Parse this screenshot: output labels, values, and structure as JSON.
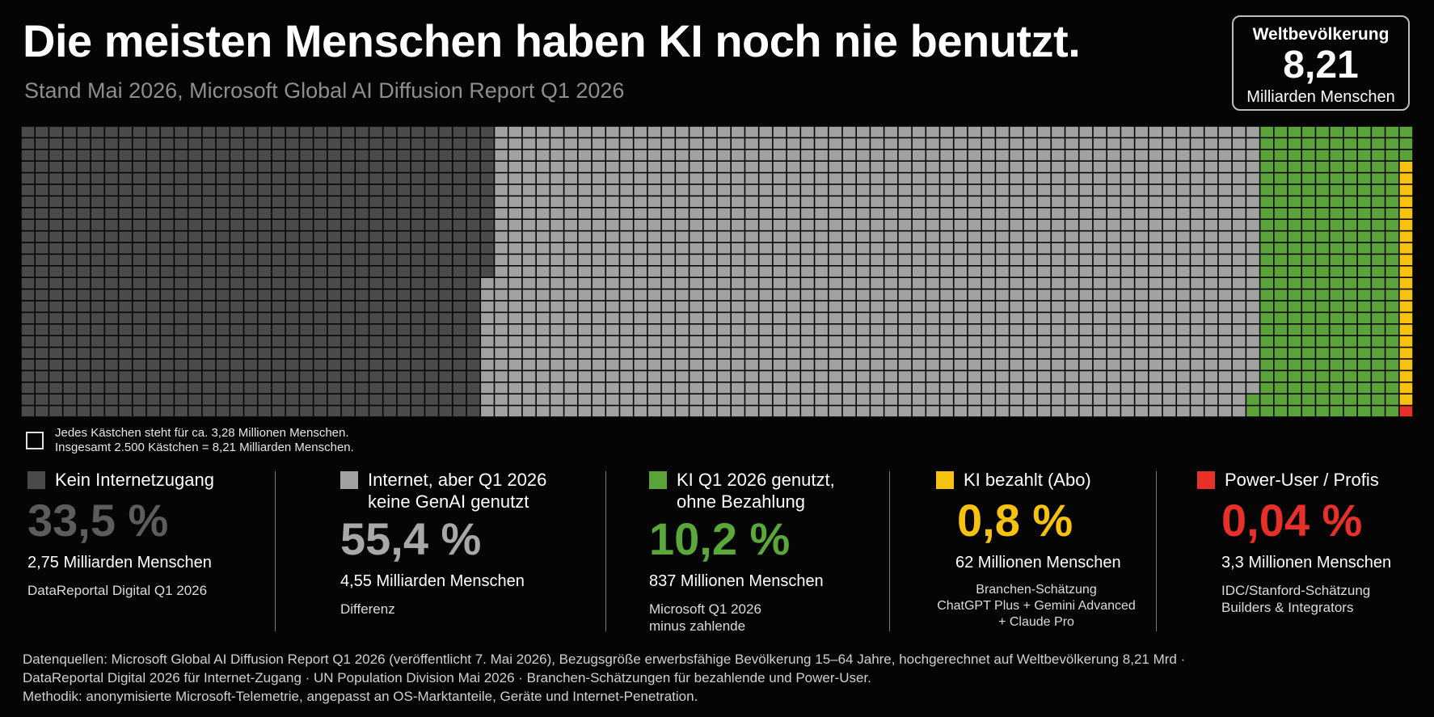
{
  "header": {
    "title": "Die meisten Menschen haben KI noch nie benutzt.",
    "subtitle": "Stand Mai 2026, Microsoft Global AI Diffusion Report Q1 2026"
  },
  "population_box": {
    "label": "Weltbevölkerung",
    "value": "8,21",
    "unit": "Milliarden Menschen"
  },
  "legend_note": {
    "line1": "Jedes Kästchen steht für ca. 3,28 Millionen Menschen.",
    "line2": "Insgesamt 2.500 Kästchen = 8,21 Milliarden Menschen."
  },
  "categories": [
    {
      "name": "Kein Internetzugang",
      "pct": "33,5 %",
      "people": "2,75 Milliarden Menschen",
      "source": "DataReportal Digital Q1 2026",
      "color": "#4a4a4a",
      "pct_color": "#5c5c5c"
    },
    {
      "name": "Internet, aber Q1 2026\nkeine GenAI genutzt",
      "pct": "55,4 %",
      "people": "4,55 Milliarden Menschen",
      "source": "Differenz",
      "color": "#a2a2a2",
      "pct_color": "#a8a8a8"
    },
    {
      "name": "KI Q1 2026 genutzt,\nohne Bezahlung",
      "pct": "10,2 %",
      "people": "837 Millionen Menschen",
      "source": "Microsoft Q1 2026\nminus zahlende",
      "color": "#5aa33a",
      "pct_color": "#5aa83a"
    },
    {
      "name": "KI bezahlt (Abo)",
      "pct": "0,8 %",
      "people": "62 Millionen Menschen",
      "source": "Branchen-Schätzung\nChatGPT Plus + Gemini Advanced\n+ Claude Pro",
      "color": "#f7c10f",
      "pct_color": "#f7c10f"
    },
    {
      "name": "Power-User / Profis",
      "pct": "0,04 %",
      "people": "3,3 Millionen Menschen",
      "source": "IDC/Stanford-Schätzung\nBuilders & Integrators",
      "color": "#e8302a",
      "pct_color": "#e8302a"
    }
  ],
  "footer": {
    "line1": "Datenquellen: Microsoft Global AI Diffusion Report Q1 2026 (veröffentlicht 7. Mai 2026), Bezugsgröße erwerbsfähige Bevölkerung 15–64 Jahre, hochgerechnet auf Weltbevölkerung 8,21 Mrd ·",
    "line2": "DataReportal Digital 2026 für Internet-Zugang · UN Population Division Mai 2026 · Branchen-Schätzungen für bezahlende und Power-User.",
    "line3": "Methodik: anonymisierte Microsoft-Telemetrie, angepasst an OS-Marktanteile, Geräte und Internet-Penetration."
  },
  "chart_data": {
    "type": "waffle",
    "total_squares": 2500,
    "rows": 25,
    "columns": 100,
    "people_per_square_millions": 3.28,
    "total_people_billions": 8.21,
    "series": [
      {
        "name": "Kein Internetzugang",
        "percent": 33.5,
        "people_millions": 2750,
        "color": "#4a4a4a"
      },
      {
        "name": "Internet, aber Q1 2026 keine GenAI genutzt",
        "percent": 55.4,
        "people_millions": 4550,
        "color": "#a2a2a2"
      },
      {
        "name": "KI Q1 2026 genutzt, ohne Bezahlung",
        "percent": 10.2,
        "people_millions": 837,
        "color": "#5aa33a"
      },
      {
        "name": "KI bezahlt (Abo)",
        "percent": 0.8,
        "people_millions": 62,
        "color": "#f7c10f"
      },
      {
        "name": "Power-User / Profis",
        "percent": 0.04,
        "people_millions": 3.3,
        "color": "#e8302a"
      }
    ]
  }
}
